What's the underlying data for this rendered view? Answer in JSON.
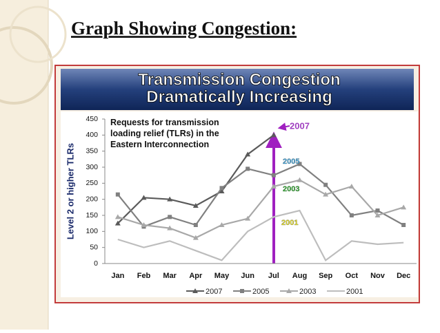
{
  "heading": "Graph Showing Congestion:",
  "chart_data": {
    "type": "line",
    "title": [
      "Transmission Congestion",
      "Dramatically Increasing"
    ],
    "annotation": "Requests for transmission loading relief (TLRs) in the Eastern Interconnection",
    "y_label": "Level 2 or higher TLRs",
    "categories": [
      "Jan",
      "Feb",
      "Mar",
      "Apr",
      "May",
      "Jun",
      "Jul",
      "Aug",
      "Sep",
      "Oct",
      "Nov",
      "Dec"
    ],
    "series": [
      {
        "name": "2007",
        "color": "#5a5a5a",
        "marker": "triangle",
        "label_color": "#a040c0",
        "values": [
          125,
          205,
          200,
          180,
          225,
          340,
          400,
          null,
          null,
          null,
          null,
          null
        ]
      },
      {
        "name": "2005",
        "color": "#808080",
        "marker": "square",
        "label_color": "#40a8e0",
        "values": [
          215,
          115,
          145,
          120,
          235,
          295,
          275,
          310,
          245,
          150,
          165,
          120
        ]
      },
      {
        "name": "2003",
        "color": "#a8a8a8",
        "marker": "triangle",
        "label_color": "#30b030",
        "values": [
          145,
          120,
          110,
          80,
          120,
          140,
          240,
          260,
          215,
          240,
          150,
          175
        ]
      },
      {
        "name": "2001",
        "color": "#bdbdbd",
        "marker": "none",
        "label_color": "#e8e020",
        "values": [
          75,
          50,
          70,
          40,
          10,
          100,
          145,
          165,
          10,
          70,
          60,
          65
        ]
      }
    ],
    "ylim": [
      0,
      450
    ],
    "yticks": [
      0,
      50,
      100,
      150,
      200,
      250,
      300,
      350,
      400,
      450
    ],
    "grid": false
  }
}
